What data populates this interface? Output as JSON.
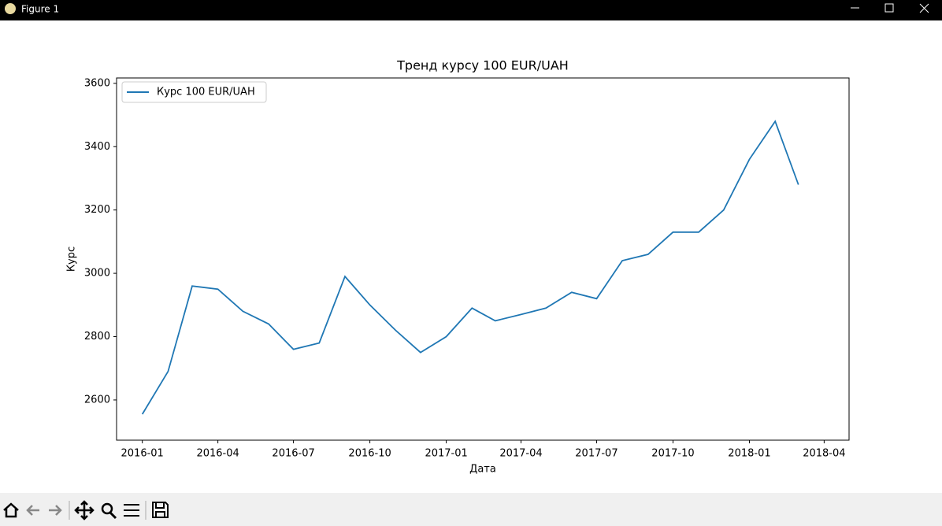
{
  "window_title": "Figure 1",
  "chart_data": {
    "type": "line",
    "title": "Тренд курсу 100 EUR/UAH",
    "x_label": "Дата",
    "y_label": "Курс",
    "x": [
      "2016-01",
      "2016-02",
      "2016-03",
      "2016-04",
      "2016-05",
      "2016-06",
      "2016-07",
      "2016-08",
      "2016-09",
      "2016-10",
      "2016-11",
      "2016-12",
      "2017-01",
      "2017-02",
      "2017-03",
      "2017-04",
      "2017-05",
      "2017-06",
      "2017-07",
      "2017-08",
      "2017-09",
      "2017-10",
      "2017-11",
      "2017-12",
      "2018-01",
      "2018-02",
      "2018-03"
    ],
    "series": [
      {
        "name": "Курс 100 EUR/UAH",
        "color": "#1f77b4",
        "values": [
          2555,
          2690,
          2960,
          2950,
          2880,
          2840,
          2760,
          2780,
          2990,
          2900,
          2820,
          2750,
          2800,
          2890,
          2850,
          2870,
          2890,
          2940,
          2920,
          3040,
          3060,
          3130,
          3130,
          3200,
          3360,
          3480,
          3280
        ]
      }
    ],
    "xlim": [
      "2015-12",
      "2018-05"
    ],
    "xticks": [
      "2016-01",
      "2016-04",
      "2016-07",
      "2016-10",
      "2017-01",
      "2017-04",
      "2017-07",
      "2017-10",
      "2018-01",
      "2018-04"
    ],
    "ylim": [
      2473,
      3617
    ],
    "yticks": [
      2600,
      2800,
      3000,
      3200,
      3400,
      3600
    ],
    "legend": "upper left",
    "grid": false
  }
}
